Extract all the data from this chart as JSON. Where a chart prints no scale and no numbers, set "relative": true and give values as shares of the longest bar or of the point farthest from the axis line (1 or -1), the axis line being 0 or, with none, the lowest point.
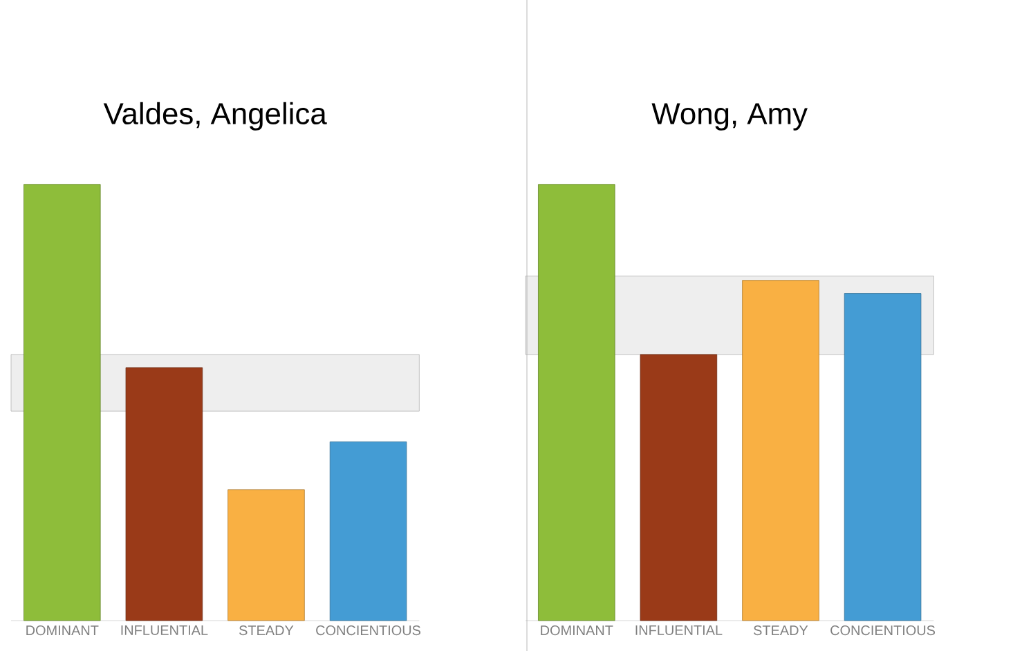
{
  "chart_data": [
    {
      "type": "bar",
      "title": "Valdes, Angelica",
      "categories": [
        "DOMINANT",
        "INFLUENTIAL",
        "STEADY",
        "CONCIENTIOUS"
      ],
      "values": [
        1,
        0.58,
        0.3,
        0.41
      ],
      "colors": [
        "#8ebd3a",
        "#9a3a18",
        "#f9b043",
        "#449cd4"
      ],
      "relative": true,
      "bands": [
        {
          "axis": "y",
          "from": 0.48,
          "to": 0.61,
          "color": "#eeeeee"
        }
      ]
    },
    {
      "type": "bar",
      "title": "Wong, Amy",
      "categories": [
        "DOMINANT",
        "INFLUENTIAL",
        "STEADY",
        "CONCIENTIOUS"
      ],
      "values": [
        1,
        0.61,
        0.78,
        0.75
      ],
      "colors": [
        "#8ebd3a",
        "#9a3a18",
        "#f9b043",
        "#449cd4"
      ],
      "relative": true,
      "bands": [
        {
          "axis": "y",
          "from": 0.61,
          "to": 0.79,
          "color": "#eeeeee"
        }
      ]
    }
  ]
}
